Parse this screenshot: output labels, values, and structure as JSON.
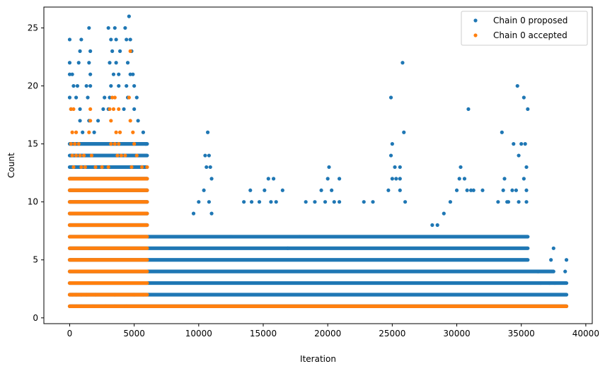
{
  "chart_data": {
    "type": "scatter",
    "title": "",
    "xlabel": "Iteration",
    "ylabel": "Count",
    "xlim": [
      -2000,
      40500
    ],
    "ylim": [
      -0.5,
      26.8
    ],
    "xticks": [
      0,
      5000,
      10000,
      15000,
      20000,
      25000,
      30000,
      35000,
      40000
    ],
    "xtick_labels": [
      "0",
      "5000",
      "10000",
      "15000",
      "20000",
      "25000",
      "30000",
      "35000",
      "40000"
    ],
    "yticks": [
      0,
      5,
      10,
      15,
      20,
      25
    ],
    "ytick_labels": [
      "0",
      "5",
      "10",
      "15",
      "20",
      "25"
    ],
    "grid": false,
    "legend_position": "top-right",
    "series": [
      {
        "name": "Chain 0 proposed",
        "color": "#1f77b4",
        "dense_bands": [
          {
            "y": 1,
            "x_range": [
              0,
              38500
            ]
          },
          {
            "y": 2,
            "x_range": [
              0,
              38500
            ]
          },
          {
            "y": 3,
            "x_range": [
              0,
              38500
            ]
          },
          {
            "y": 4,
            "x_range": [
              0,
              37500
            ]
          },
          {
            "y": 5,
            "x_range": [
              0,
              35500
            ]
          },
          {
            "y": 6,
            "x_range": [
              0,
              35500
            ]
          },
          {
            "y": 7,
            "x_range": [
              0,
              35500
            ]
          },
          {
            "y": 8,
            "x_range": [
              0,
              6000
            ]
          },
          {
            "y": 9,
            "x_range": [
              0,
              6000
            ]
          },
          {
            "y": 10,
            "x_range": [
              0,
              6000
            ]
          },
          {
            "y": 11,
            "x_range": [
              0,
              6000
            ]
          },
          {
            "y": 12,
            "x_range": [
              0,
              6000
            ]
          },
          {
            "y": 13,
            "x_range": [
              0,
              6000
            ]
          },
          {
            "y": 14,
            "x_range": [
              0,
              6000
            ]
          },
          {
            "y": 15,
            "x_range": [
              0,
              6000
            ]
          }
        ],
        "sparse_points": [
          [
            0,
            24
          ],
          [
            0,
            22
          ],
          [
            0,
            21
          ],
          [
            200,
            21
          ],
          [
            300,
            20
          ],
          [
            0,
            19
          ],
          [
            500,
            19
          ],
          [
            100,
            18
          ],
          [
            800,
            17
          ],
          [
            1000,
            16
          ],
          [
            1500,
            25
          ],
          [
            1600,
            23
          ],
          [
            1500,
            22
          ],
          [
            1600,
            21
          ],
          [
            1300,
            20
          ],
          [
            1600,
            20
          ],
          [
            1400,
            19
          ],
          [
            1500,
            17
          ],
          [
            1900,
            16
          ],
          [
            900,
            24
          ],
          [
            800,
            23
          ],
          [
            700,
            22
          ],
          [
            600,
            20
          ],
          [
            800,
            18
          ],
          [
            2200,
            17
          ],
          [
            2600,
            18
          ],
          [
            3000,
            25
          ],
          [
            3500,
            25
          ],
          [
            4300,
            25
          ],
          [
            4600,
            26
          ],
          [
            3200,
            24
          ],
          [
            3600,
            24
          ],
          [
            4400,
            24
          ],
          [
            4700,
            24
          ],
          [
            3300,
            23
          ],
          [
            3900,
            23
          ],
          [
            4800,
            23
          ],
          [
            3100,
            22
          ],
          [
            3600,
            22
          ],
          [
            4500,
            22
          ],
          [
            3400,
            21
          ],
          [
            3800,
            21
          ],
          [
            4700,
            21
          ],
          [
            4900,
            21
          ],
          [
            3200,
            20
          ],
          [
            3800,
            20
          ],
          [
            4400,
            20
          ],
          [
            5000,
            20
          ],
          [
            3100,
            19
          ],
          [
            4500,
            19
          ],
          [
            5200,
            19
          ],
          [
            2700,
            19
          ],
          [
            3000,
            18
          ],
          [
            4200,
            18
          ],
          [
            5000,
            18
          ],
          [
            5300,
            17
          ],
          [
            5700,
            16
          ],
          [
            5900,
            15
          ],
          [
            10700,
            16
          ],
          [
            10500,
            14
          ],
          [
            10800,
            14
          ],
          [
            10600,
            13
          ],
          [
            10900,
            13
          ],
          [
            11000,
            12
          ],
          [
            10400,
            11
          ],
          [
            10000,
            10
          ],
          [
            10800,
            10
          ],
          [
            9600,
            9
          ],
          [
            11000,
            9
          ],
          [
            12500,
            7
          ],
          [
            13500,
            10
          ],
          [
            14100,
            10
          ],
          [
            14000,
            11
          ],
          [
            15400,
            12
          ],
          [
            15800,
            12
          ],
          [
            15100,
            11
          ],
          [
            14700,
            10
          ],
          [
            15600,
            10
          ],
          [
            16000,
            10
          ],
          [
            16500,
            11
          ],
          [
            20100,
            13
          ],
          [
            20000,
            12
          ],
          [
            20900,
            12
          ],
          [
            19500,
            11
          ],
          [
            20300,
            11
          ],
          [
            18300,
            10
          ],
          [
            19000,
            10
          ],
          [
            19800,
            10
          ],
          [
            20500,
            10
          ],
          [
            20900,
            10
          ],
          [
            22800,
            10
          ],
          [
            23500,
            10
          ],
          [
            17800,
            7
          ],
          [
            16900,
            6
          ],
          [
            24900,
            19
          ],
          [
            25000,
            15
          ],
          [
            24900,
            14
          ],
          [
            25200,
            13
          ],
          [
            25600,
            13
          ],
          [
            25000,
            12
          ],
          [
            25300,
            12
          ],
          [
            25600,
            12
          ],
          [
            25800,
            22
          ],
          [
            25900,
            16
          ],
          [
            24700,
            11
          ],
          [
            25600,
            11
          ],
          [
            26000,
            10
          ],
          [
            28100,
            8
          ],
          [
            28500,
            8
          ],
          [
            29000,
            9
          ],
          [
            29500,
            10
          ],
          [
            30300,
            13
          ],
          [
            30600,
            12
          ],
          [
            30200,
            12
          ],
          [
            30000,
            11
          ],
          [
            30800,
            11
          ],
          [
            31100,
            11
          ],
          [
            31300,
            11
          ],
          [
            32000,
            11
          ],
          [
            30900,
            18
          ],
          [
            33500,
            16
          ],
          [
            34700,
            20
          ],
          [
            35200,
            19
          ],
          [
            35500,
            18
          ],
          [
            34400,
            15
          ],
          [
            34800,
            14
          ],
          [
            35000,
            15
          ],
          [
            35300,
            15
          ],
          [
            35400,
            13
          ],
          [
            35200,
            12
          ],
          [
            33700,
            12
          ],
          [
            33600,
            11
          ],
          [
            34300,
            11
          ],
          [
            34600,
            11
          ],
          [
            35400,
            11
          ],
          [
            33200,
            10
          ],
          [
            33900,
            10
          ],
          [
            34000,
            10
          ],
          [
            34800,
            10
          ],
          [
            35400,
            10
          ],
          [
            37500,
            6
          ],
          [
            37300,
            5
          ],
          [
            38500,
            5
          ],
          [
            38400,
            4
          ],
          [
            36300,
            4
          ],
          [
            36500,
            3
          ],
          [
            37200,
            3
          ],
          [
            37600,
            3
          ]
        ]
      },
      {
        "name": "Chain 0 accepted",
        "color": "#ff7f0e",
        "dense_bands": [
          {
            "y": 1,
            "x_range": [
              0,
              38500
            ]
          },
          {
            "y": 2,
            "x_range": [
              0,
              6000
            ]
          },
          {
            "y": 3,
            "x_range": [
              0,
              6000
            ]
          },
          {
            "y": 4,
            "x_range": [
              0,
              6000
            ]
          },
          {
            "y": 5,
            "x_range": [
              0,
              6000
            ]
          },
          {
            "y": 6,
            "x_range": [
              0,
              6000
            ]
          },
          {
            "y": 7,
            "x_range": [
              0,
              6000
            ]
          },
          {
            "y": 8,
            "x_range": [
              0,
              6000
            ]
          },
          {
            "y": 9,
            "x_range": [
              0,
              6000
            ]
          },
          {
            "y": 10,
            "x_range": [
              0,
              6000
            ]
          },
          {
            "y": 11,
            "x_range": [
              0,
              6000
            ]
          },
          {
            "y": 12,
            "x_range": [
              0,
              6000
            ]
          }
        ],
        "sparse_points": [
          [
            100,
            18
          ],
          [
            300,
            18
          ],
          [
            200,
            16
          ],
          [
            500,
            16
          ],
          [
            100,
            15
          ],
          [
            400,
            15
          ],
          [
            700,
            15
          ],
          [
            200,
            14
          ],
          [
            500,
            14
          ],
          [
            800,
            14
          ],
          [
            1100,
            14
          ],
          [
            300,
            13
          ],
          [
            900,
            13
          ],
          [
            1200,
            13
          ],
          [
            1600,
            18
          ],
          [
            1500,
            16
          ],
          [
            1600,
            17
          ],
          [
            1700,
            14
          ],
          [
            2000,
            13
          ],
          [
            2500,
            13
          ],
          [
            3000,
            13
          ],
          [
            3300,
            19
          ],
          [
            3500,
            19
          ],
          [
            3100,
            18
          ],
          [
            3400,
            18
          ],
          [
            3800,
            18
          ],
          [
            3200,
            17
          ],
          [
            3600,
            16
          ],
          [
            3900,
            16
          ],
          [
            3200,
            15
          ],
          [
            3500,
            15
          ],
          [
            3800,
            15
          ],
          [
            4000,
            14
          ],
          [
            4300,
            14
          ],
          [
            4700,
            23
          ],
          [
            4600,
            19
          ],
          [
            4700,
            17
          ],
          [
            4900,
            16
          ],
          [
            5000,
            15
          ],
          [
            5200,
            14
          ],
          [
            4800,
            13
          ],
          [
            5600,
            13
          ],
          [
            6000,
            13
          ],
          [
            3700,
            14
          ],
          [
            200,
            2
          ],
          [
            500,
            2
          ],
          [
            900,
            2
          ],
          [
            1300,
            2
          ],
          [
            2000,
            2
          ],
          [
            3500,
            2
          ],
          [
            5000,
            2
          ],
          [
            5700,
            2
          ],
          [
            200,
            1
          ],
          [
            500,
            1
          ],
          [
            900,
            1
          ],
          [
            1800,
            1
          ],
          [
            2800,
            1
          ],
          [
            3500,
            1
          ],
          [
            4400,
            1
          ]
        ]
      }
    ]
  }
}
